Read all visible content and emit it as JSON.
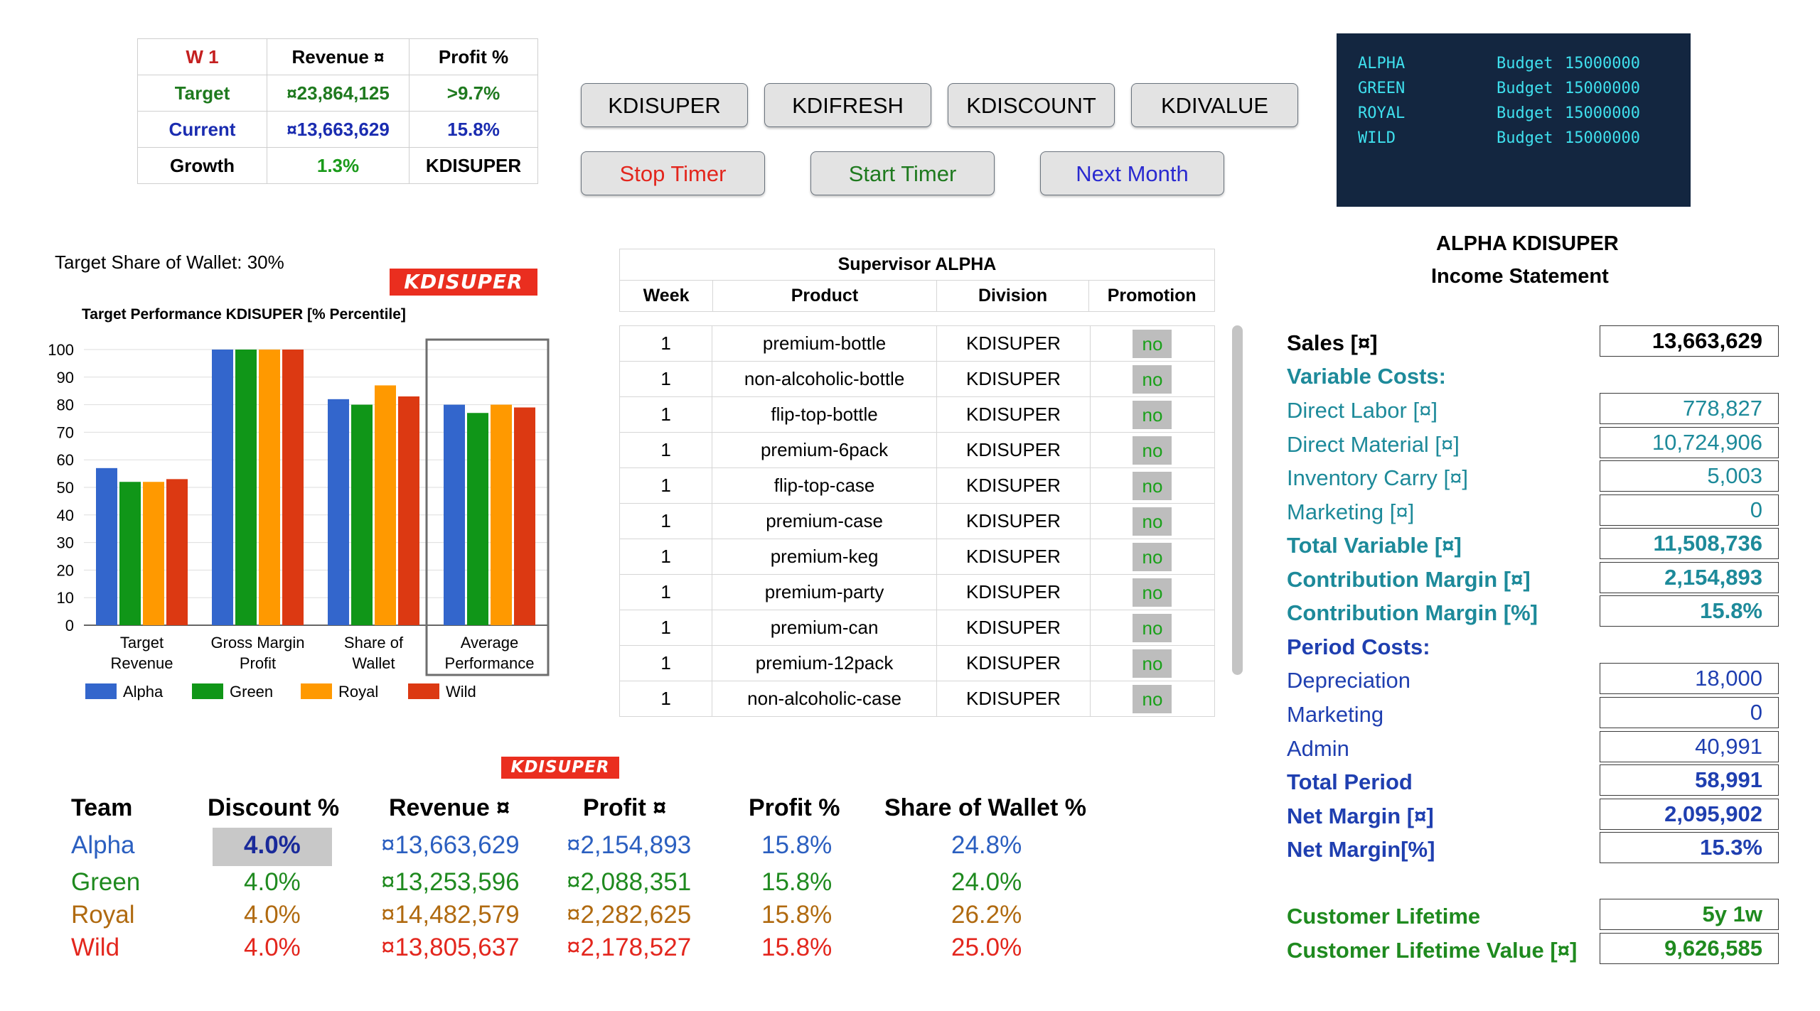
{
  "summary": {
    "header": [
      "W 1",
      "Revenue ¤",
      "Profit %"
    ],
    "target": [
      "Target",
      "¤23,864,125",
      ">9.7%"
    ],
    "current": [
      "Current",
      "¤13,663,629",
      "15.8%"
    ],
    "growth": [
      "Growth",
      "1.3%",
      "KDISUPER"
    ]
  },
  "product_buttons": [
    "KDISUPER",
    "KDIFRESH",
    "KDISCOUNT",
    "KDIVALUE"
  ],
  "timer_buttons": {
    "stop": "Stop Timer",
    "start": "Start Timer",
    "next": "Next Month"
  },
  "budget": [
    {
      "team": "ALPHA",
      "label": "Budget",
      "value": "15000000"
    },
    {
      "team": "GREEN",
      "label": "Budget",
      "value": "15000000"
    },
    {
      "team": "ROYAL",
      "label": "Budget",
      "value": "15000000"
    },
    {
      "team": "WILD",
      "label": "Budget",
      "value": "15000000"
    }
  ],
  "target_share": "Target Share of Wallet: 30%",
  "logo_text": "KDISUPER",
  "chart_data": {
    "type": "bar",
    "title": "Target Performance KDISUPER [% Percentile]",
    "categories": [
      "Target Revenue",
      "Gross Margin Profit",
      "Share of Wallet",
      "Average Performance"
    ],
    "category_lines": [
      [
        "Target",
        "Revenue"
      ],
      [
        "Gross Margin",
        "Profit"
      ],
      [
        "Share of",
        "Wallet"
      ],
      [
        "Average",
        "Performance"
      ]
    ],
    "series": [
      {
        "name": "Alpha",
        "color": "#3366cc",
        "values": [
          57,
          100,
          82,
          80
        ]
      },
      {
        "name": "Green",
        "color": "#109618",
        "values": [
          52,
          100,
          80,
          77
        ]
      },
      {
        "name": "Royal",
        "color": "#ff9900",
        "values": [
          52,
          100,
          87,
          80
        ]
      },
      {
        "name": "Wild",
        "color": "#dc3912",
        "values": [
          53,
          100,
          83,
          79
        ]
      }
    ],
    "ylim": [
      0,
      100
    ],
    "yticks": [
      "0",
      "10",
      "20",
      "30",
      "40",
      "50",
      "60",
      "70",
      "80",
      "90",
      "100"
    ],
    "highlight_category": "Average Performance",
    "legend": "bottom"
  },
  "supervisor": {
    "title": "Supervisor ALPHA",
    "columns": [
      "Week",
      "Product",
      "Division",
      "Promotion"
    ],
    "rows": [
      {
        "week": "1",
        "product": "premium-bottle",
        "division": "KDISUPER",
        "promotion": "no"
      },
      {
        "week": "1",
        "product": "non-alcoholic-bottle",
        "division": "KDISUPER",
        "promotion": "no"
      },
      {
        "week": "1",
        "product": "flip-top-bottle",
        "division": "KDISUPER",
        "promotion": "no"
      },
      {
        "week": "1",
        "product": "premium-6pack",
        "division": "KDISUPER",
        "promotion": "no"
      },
      {
        "week": "1",
        "product": "flip-top-case",
        "division": "KDISUPER",
        "promotion": "no"
      },
      {
        "week": "1",
        "product": "premium-case",
        "division": "KDISUPER",
        "promotion": "no"
      },
      {
        "week": "1",
        "product": "premium-keg",
        "division": "KDISUPER",
        "promotion": "no"
      },
      {
        "week": "1",
        "product": "premium-party",
        "division": "KDISUPER",
        "promotion": "no"
      },
      {
        "week": "1",
        "product": "premium-can",
        "division": "KDISUPER",
        "promotion": "no"
      },
      {
        "week": "1",
        "product": "premium-12pack",
        "division": "KDISUPER",
        "promotion": "no"
      },
      {
        "week": "1",
        "product": "non-alcoholic-case",
        "division": "KDISUPER",
        "promotion": "no"
      }
    ]
  },
  "income": {
    "title1": "ALPHA KDISUPER",
    "title2": "Income Statement",
    "sales_label": "Sales [¤]",
    "sales": "13,663,629",
    "variable_header": "Variable Costs:",
    "direct_labor_label": "Direct Labor [¤]",
    "direct_labor": "778,827",
    "direct_material_label": "Direct Material [¤]",
    "direct_material": "10,724,906",
    "inventory_label": "Inventory Carry [¤]",
    "inventory": "5,003",
    "marketing_v_label": "Marketing [¤]",
    "marketing_v": "0",
    "total_variable_label": "Total Variable [¤]",
    "total_variable": "11,508,736",
    "cm_label": "Contribution Margin [¤]",
    "cm": "2,154,893",
    "cm_pct_label": "Contribution Margin [%]",
    "cm_pct": "15.8%",
    "period_header": "Period Costs:",
    "depreciation_label": "Depreciation",
    "depreciation": "18,000",
    "marketing_p_label": "Marketing",
    "marketing_p": "0",
    "admin_label": "Admin",
    "admin": "40,991",
    "total_period_label": "Total Period",
    "total_period": "58,991",
    "net_label": "Net Margin [¤]",
    "net": "2,095,902",
    "net_pct_label": "Net Margin[%]",
    "net_pct": "15.3%",
    "lifetime_label": "Customer Lifetime",
    "lifetime": "5y 1w",
    "clv_label": "Customer Lifetime Value [¤]",
    "clv": "9,626,585"
  },
  "teams": {
    "headers": [
      "Team",
      "Discount %",
      "Revenue ¤",
      "Profit ¤",
      "Profit %",
      "Share of Wallet %"
    ],
    "rows": [
      {
        "team": "Alpha",
        "color": "#2b5fc0",
        "discount": "4.0%",
        "revenue": "¤13,663,629",
        "profit": "¤2,154,893",
        "profit_pct": "15.8%",
        "share": "24.8%"
      },
      {
        "team": "Green",
        "color": "#1f8a1f",
        "discount": "4.0%",
        "revenue": "¤13,253,596",
        "profit": "¤2,088,351",
        "profit_pct": "15.8%",
        "share": "24.0%"
      },
      {
        "team": "Royal",
        "color": "#b06a10",
        "discount": "4.0%",
        "revenue": "¤14,482,579",
        "profit": "¤2,282,625",
        "profit_pct": "15.8%",
        "share": "26.2%"
      },
      {
        "team": "Wild",
        "color": "#e3261d",
        "discount": "4.0%",
        "revenue": "¤13,805,637",
        "profit": "¤2,178,527",
        "profit_pct": "15.8%",
        "share": "25.0%"
      }
    ]
  }
}
